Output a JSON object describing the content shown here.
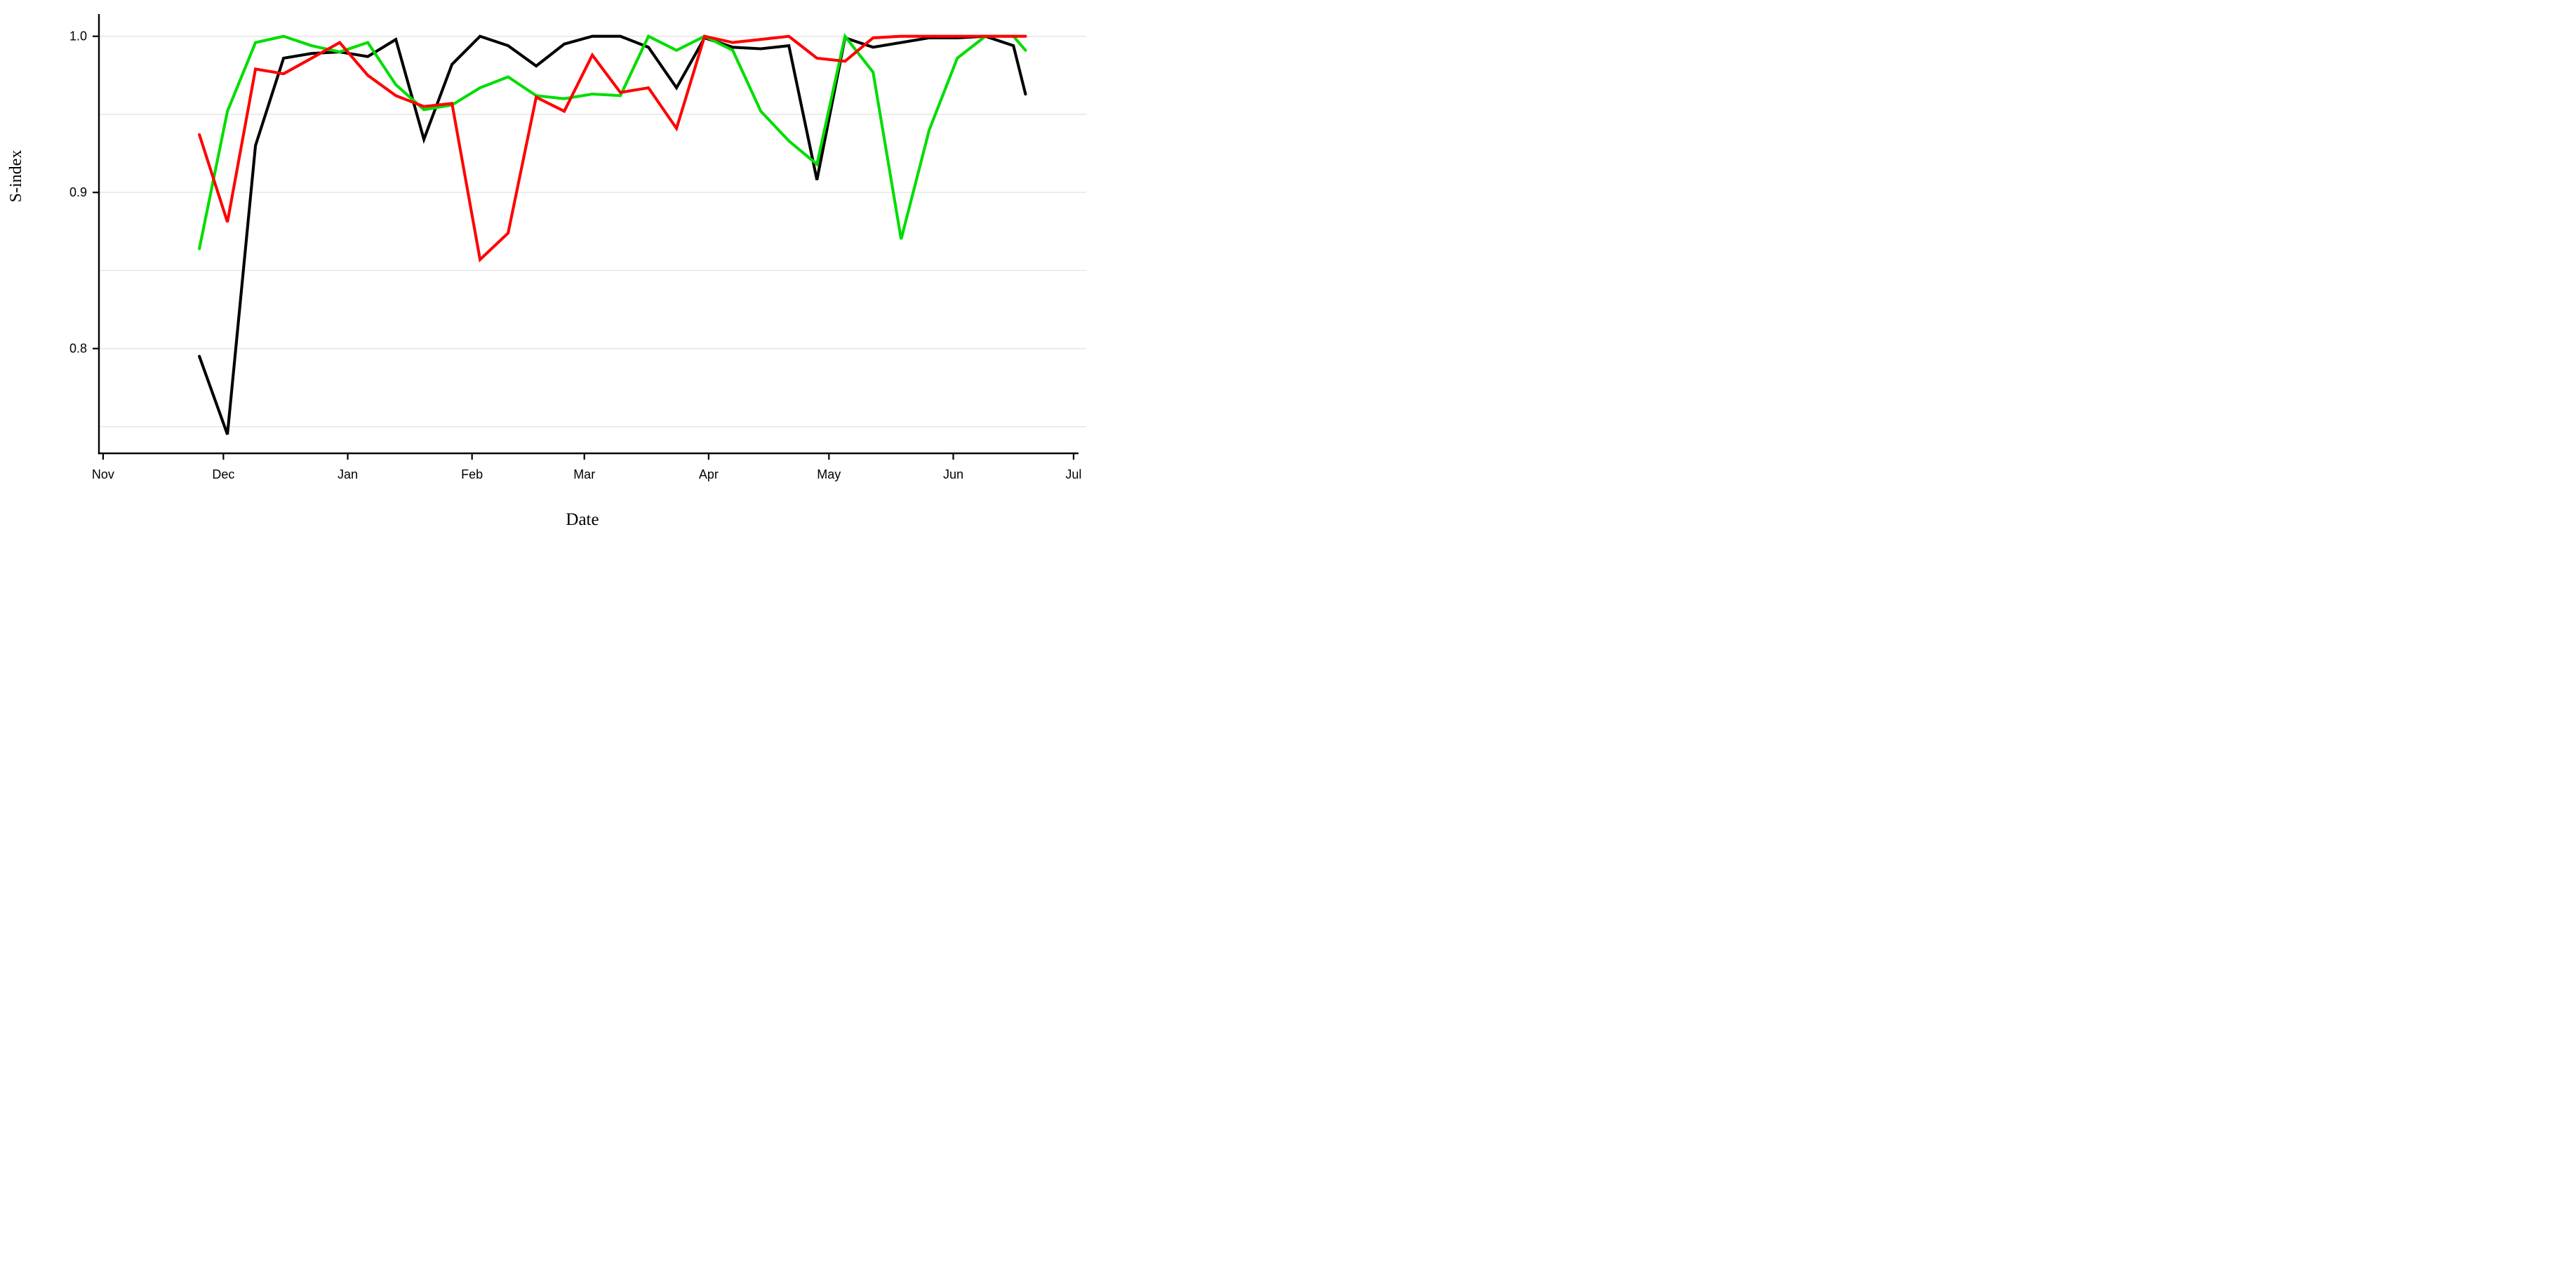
{
  "page": {
    "background": "#ffffff"
  },
  "chart_data": {
    "type": "line",
    "title": "",
    "xlabel": "Date",
    "ylabel": "S-index",
    "grid": true,
    "legend": "none",
    "x_axis": {
      "tick_labels": [
        "Nov",
        "Dec",
        "Jan",
        "Feb",
        "Mar",
        "Apr",
        "May",
        "Jun",
        "Jul"
      ],
      "tick_day_offsets": [
        0,
        30,
        61,
        92,
        120,
        151,
        181,
        212,
        242
      ]
    },
    "y_axis": {
      "tick_labels": [
        "1.0",
        "0.9",
        "0.8"
      ],
      "tick_values": [
        1.0,
        0.9,
        0.8
      ],
      "gridline_values": [
        1.0,
        0.95,
        0.9,
        0.85,
        0.8,
        0.75
      ],
      "range": [
        0.733,
        1.014
      ]
    },
    "point_dates": [
      "Nov 25",
      "Dec 2",
      "Dec 9",
      "Dec 16",
      "Dec 23",
      "Dec 30",
      "Jan 6",
      "Jan 13",
      "Jan 20",
      "Jan 27",
      "Feb 3",
      "Feb 10",
      "Feb 17",
      "Feb 24",
      "Mar 3",
      "Mar 10",
      "Mar 17",
      "Mar 24",
      "Mar 31",
      "Apr 7",
      "Apr 14",
      "Apr 21",
      "Apr 28",
      "May 5",
      "May 12",
      "May 19",
      "May 26",
      "Jun 2",
      "Jun 9",
      "Jun 16",
      "Jun 19"
    ],
    "point_day_offsets": [
      24,
      31,
      38,
      45,
      52,
      59,
      66,
      73,
      80,
      87,
      94,
      101,
      108,
      115,
      122,
      129,
      136,
      143,
      150,
      157,
      164,
      171,
      178,
      185,
      192,
      199,
      206,
      213,
      220,
      227,
      230
    ],
    "series": [
      {
        "name": "black",
        "color": "#000000",
        "values": [
          0.795,
          0.745,
          0.93,
          0.986,
          0.989,
          0.99,
          0.987,
          0.998,
          0.934,
          0.982,
          1.0,
          0.994,
          0.981,
          0.995,
          1.0,
          1.0,
          0.993,
          0.967,
          0.999,
          0.993,
          0.992,
          0.994,
          0.908,
          0.999,
          0.993,
          0.996,
          0.999,
          0.999,
          1.0,
          0.994,
          0.963
        ]
      },
      {
        "name": "green",
        "color": "#00dd00",
        "values": [
          0.864,
          0.952,
          0.996,
          1.0,
          0.994,
          0.99,
          0.996,
          0.969,
          0.953,
          0.956,
          0.967,
          0.974,
          0.962,
          0.96,
          0.963,
          0.962,
          1.0,
          0.991,
          1.0,
          0.991,
          0.952,
          0.933,
          0.918,
          1.0,
          0.977,
          0.87,
          0.94,
          0.986,
          1.0,
          1.0,
          0.991
        ]
      },
      {
        "name": "red",
        "color": "#ff0000",
        "values": [
          0.937,
          0.881,
          0.979,
          0.976,
          0.986,
          0.996,
          0.975,
          0.962,
          0.955,
          0.957,
          0.857,
          0.874,
          0.961,
          0.952,
          0.988,
          0.964,
          0.967,
          0.941,
          1.0,
          0.996,
          0.998,
          1.0,
          0.986,
          0.984,
          0.999,
          1.0,
          1.0,
          1.0,
          1.0,
          1.0,
          1.0
        ]
      }
    ]
  }
}
